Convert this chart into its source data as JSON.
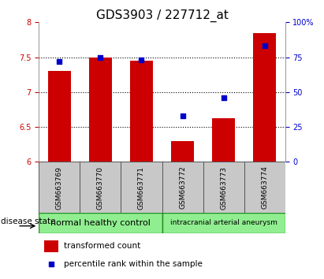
{
  "title": "GDS3903 / 227712_at",
  "samples": [
    "GSM663769",
    "GSM663770",
    "GSM663771",
    "GSM663772",
    "GSM663773",
    "GSM663774"
  ],
  "bar_values": [
    7.3,
    7.5,
    7.45,
    6.3,
    6.63,
    7.85
  ],
  "percentile_values": [
    72,
    75,
    73,
    33,
    46,
    83
  ],
  "ylim_left": [
    6.0,
    8.0
  ],
  "ylim_right": [
    0,
    100
  ],
  "yticks_left": [
    6.0,
    6.5,
    7.0,
    7.5,
    8.0
  ],
  "ytick_labels_left": [
    "6",
    "6.5",
    "7",
    "7.5",
    "8"
  ],
  "yticks_right": [
    0,
    25,
    50,
    75,
    100
  ],
  "ytick_labels_right": [
    "0",
    "25",
    "50",
    "75",
    "100%"
  ],
  "groups": [
    {
      "label": "normal healthy control",
      "color": "#90EE90"
    },
    {
      "label": "intracranial arterial aneurysm",
      "color": "#90EE90"
    }
  ],
  "bar_color": "#CC0000",
  "marker_color": "#0000CC",
  "title_fontsize": 11,
  "disease_state_label": "disease state",
  "legend_bar_label": "transformed count",
  "legend_marker_label": "percentile rank within the sample",
  "left_axis_color": "#CC0000",
  "right_axis_color": "#0000CC",
  "xlabel_area_color": "#C8C8C8",
  "group_border_color": "#228B22",
  "group1_indices": [
    0,
    1,
    2
  ],
  "group2_indices": [
    3,
    4,
    5
  ]
}
